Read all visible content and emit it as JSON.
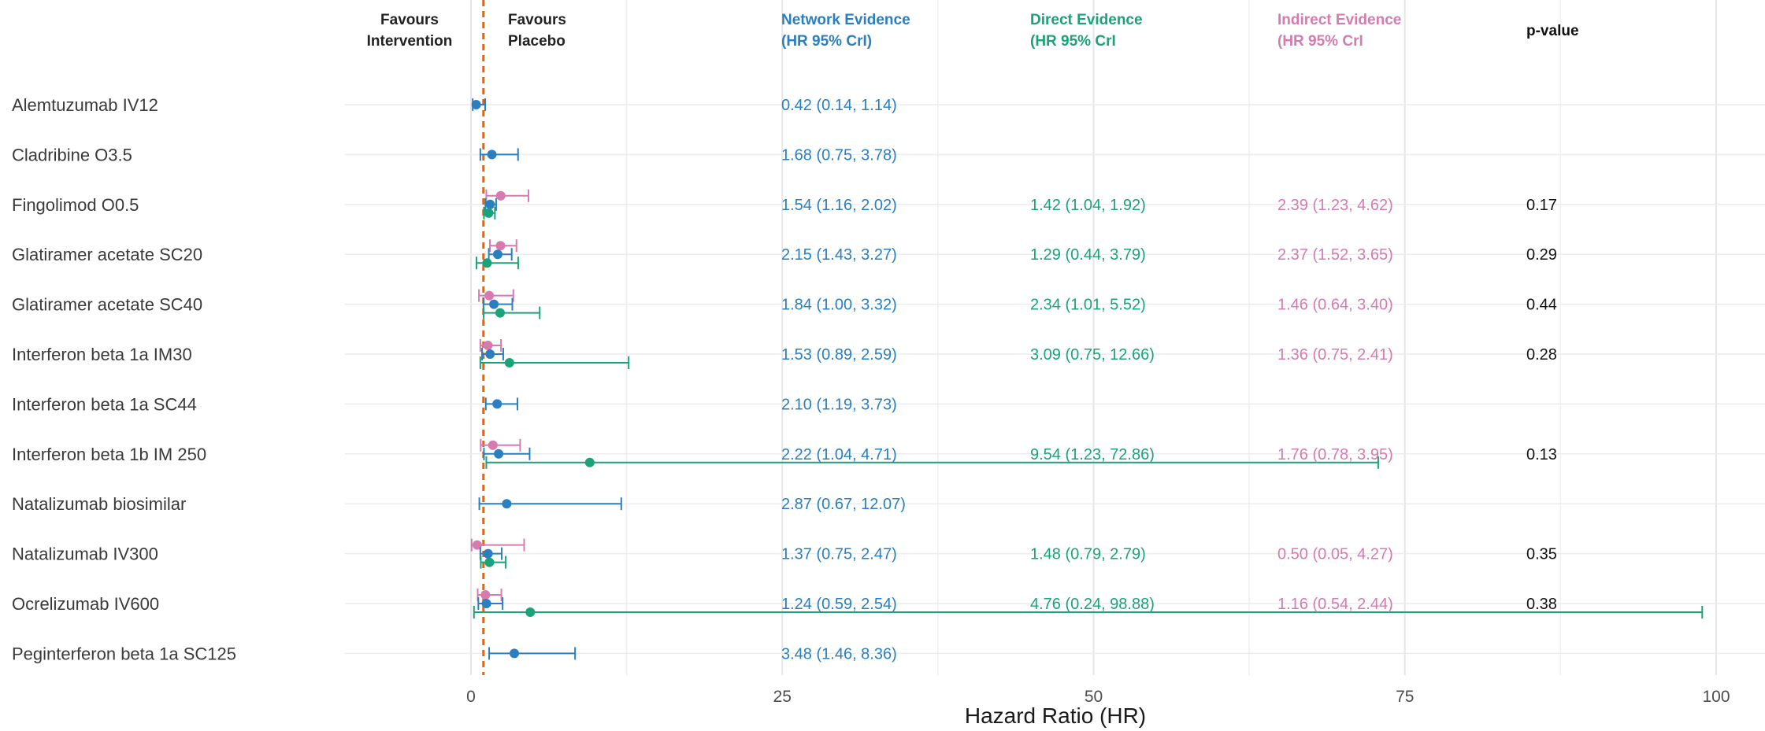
{
  "chart_data": {
    "type": "forest",
    "xlabel": "Hazard Ratio (HR)",
    "xlim": [
      -1.5,
      103.5
    ],
    "xticks": [
      0,
      25,
      50,
      75,
      100
    ],
    "reference_line": 1,
    "favours_left": [
      "Favours",
      "Intervention"
    ],
    "favours_right": [
      "Favours",
      "Placebo"
    ],
    "columns": {
      "network": {
        "title": [
          "Network Evidence",
          "(HR 95% CrI)"
        ],
        "color": "#2a7fc0"
      },
      "direct": {
        "title": [
          "Direct Evidence",
          "(HR 95% CrI"
        ],
        "color": "#1aa37a"
      },
      "indirect": {
        "title": [
          "Indirect Evidence",
          "(HR 95% CrI"
        ],
        "color": "#d57bb0"
      },
      "pvalue": {
        "title": "p-value",
        "color": "#111111"
      }
    },
    "grid": true,
    "rows": [
      {
        "label": "Alemtuzumab IV12",
        "network": {
          "hr": 0.42,
          "lo": 0.14,
          "hi": 1.14,
          "text": "0.42 (0.14, 1.14)"
        }
      },
      {
        "label": "Cladribine O3.5",
        "network": {
          "hr": 1.68,
          "lo": 0.75,
          "hi": 3.78,
          "text": "1.68 (0.75, 3.78)"
        }
      },
      {
        "label": "Fingolimod O0.5",
        "network": {
          "hr": 1.54,
          "lo": 1.16,
          "hi": 2.02,
          "text": "1.54 (1.16, 2.02)"
        },
        "direct": {
          "hr": 1.42,
          "lo": 1.04,
          "hi": 1.92,
          "text": "1.42 (1.04, 1.92)"
        },
        "indirect": {
          "hr": 2.39,
          "lo": 1.23,
          "hi": 4.62,
          "text": "2.39 (1.23, 4.62)"
        },
        "pvalue": "0.17"
      },
      {
        "label": "Glatiramer acetate SC20",
        "network": {
          "hr": 2.15,
          "lo": 1.43,
          "hi": 3.27,
          "text": "2.15 (1.43, 3.27)"
        },
        "direct": {
          "hr": 1.29,
          "lo": 0.44,
          "hi": 3.79,
          "text": "1.29 (0.44, 3.79)"
        },
        "indirect": {
          "hr": 2.37,
          "lo": 1.52,
          "hi": 3.65,
          "text": "2.37 (1.52, 3.65)"
        },
        "pvalue": "0.29"
      },
      {
        "label": "Glatiramer acetate SC40",
        "network": {
          "hr": 1.84,
          "lo": 1.0,
          "hi": 3.32,
          "text": "1.84 (1.00, 3.32)"
        },
        "direct": {
          "hr": 2.34,
          "lo": 1.01,
          "hi": 5.52,
          "text": "2.34 (1.01, 5.52)"
        },
        "indirect": {
          "hr": 1.46,
          "lo": 0.64,
          "hi": 3.4,
          "text": "1.46 (0.64, 3.40)"
        },
        "pvalue": "0.44"
      },
      {
        "label": "Interferon beta 1a IM30",
        "network": {
          "hr": 1.53,
          "lo": 0.89,
          "hi": 2.59,
          "text": "1.53 (0.89, 2.59)"
        },
        "direct": {
          "hr": 3.09,
          "lo": 0.75,
          "hi": 12.66,
          "text": "3.09 (0.75, 12.66)"
        },
        "indirect": {
          "hr": 1.36,
          "lo": 0.75,
          "hi": 2.41,
          "text": "1.36 (0.75, 2.41)"
        },
        "pvalue": "0.28"
      },
      {
        "label": "Interferon beta 1a SC44",
        "network": {
          "hr": 2.1,
          "lo": 1.19,
          "hi": 3.73,
          "text": "2.10 (1.19, 3.73)"
        }
      },
      {
        "label": "Interferon beta 1b IM 250",
        "network": {
          "hr": 2.22,
          "lo": 1.04,
          "hi": 4.71,
          "text": "2.22 (1.04, 4.71)"
        },
        "direct": {
          "hr": 9.54,
          "lo": 1.23,
          "hi": 72.86,
          "text": "9.54 (1.23, 72.86)"
        },
        "indirect": {
          "hr": 1.76,
          "lo": 0.78,
          "hi": 3.95,
          "text": "1.76 (0.78, 3.95)"
        },
        "pvalue": "0.13"
      },
      {
        "label": "Natalizumab biosimilar",
        "network": {
          "hr": 2.87,
          "lo": 0.67,
          "hi": 12.07,
          "text": "2.87 (0.67, 12.07)"
        }
      },
      {
        "label": "Natalizumab IV300",
        "network": {
          "hr": 1.37,
          "lo": 0.75,
          "hi": 2.47,
          "text": "1.37 (0.75, 2.47)"
        },
        "direct": {
          "hr": 1.48,
          "lo": 0.79,
          "hi": 2.79,
          "text": "1.48 (0.79, 2.79)"
        },
        "indirect": {
          "hr": 0.5,
          "lo": 0.05,
          "hi": 4.27,
          "text": "0.50 (0.05, 4.27)"
        },
        "pvalue": "0.35"
      },
      {
        "label": "Ocrelizumab IV600",
        "network": {
          "hr": 1.24,
          "lo": 0.59,
          "hi": 2.54,
          "text": "1.24 (0.59, 2.54)"
        },
        "direct": {
          "hr": 4.76,
          "lo": 0.24,
          "hi": 98.88,
          "text": "4.76 (0.24, 98.88)"
        },
        "indirect": {
          "hr": 1.16,
          "lo": 0.54,
          "hi": 2.44,
          "text": "1.16 (0.54, 2.44)"
        },
        "pvalue": "0.38"
      },
      {
        "label": "Peginterferon beta 1a SC125",
        "network": {
          "hr": 3.48,
          "lo": 1.46,
          "hi": 8.36,
          "text": "3.48 (1.46, 8.36)"
        }
      }
    ]
  }
}
